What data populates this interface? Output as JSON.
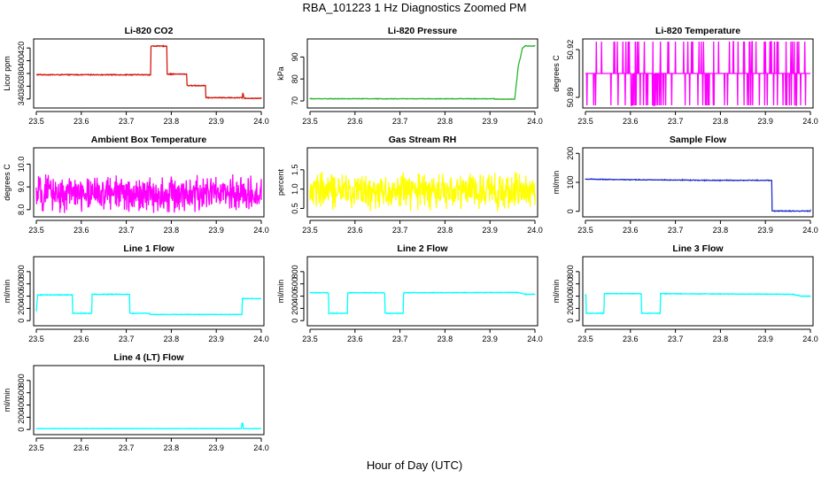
{
  "figure": {
    "title": "RBA_101223  1 Hz Diagnostics Zoomed PM",
    "xlabel": "Hour of Day (UTC)"
  },
  "chart_data": [
    {
      "type": "line",
      "title": "Li-820 CO2",
      "ylabel": "Licor ppm",
      "color": "#d11a0e",
      "xlim": [
        23.5,
        24.0
      ],
      "ylim": [
        330,
        430
      ],
      "xticks": [
        23.5,
        23.6,
        23.7,
        23.8,
        23.9,
        24.0
      ],
      "xtick_labels": [
        "23.5",
        "23.6",
        "23.7",
        "23.8",
        "23.9",
        "24.0"
      ],
      "yticks": [
        340,
        360,
        380,
        400,
        420
      ],
      "ytick_labels": [
        "340",
        "360",
        "380",
        "400",
        "420"
      ],
      "noise": 0.8,
      "series": [
        {
          "x": [
            23.5,
            23.754,
            23.755,
            23.79,
            23.791,
            23.834,
            23.835,
            23.876,
            23.877,
            23.958,
            23.959,
            23.962,
            23.963,
            24.0
          ],
          "y": [
            378,
            378,
            423,
            423,
            379,
            379,
            361,
            361,
            342,
            342,
            350,
            342,
            341,
            341
          ]
        }
      ]
    },
    {
      "type": "line",
      "title": "Li-820 Pressure",
      "ylabel": "kPa",
      "color": "#2bb52b",
      "xlim": [
        23.5,
        24.0
      ],
      "ylim": [
        68,
        97
      ],
      "xticks": [
        23.5,
        23.6,
        23.7,
        23.8,
        23.9,
        24.0
      ],
      "xtick_labels": [
        "23.5",
        "23.6",
        "23.7",
        "23.8",
        "23.9",
        "24.0"
      ],
      "yticks": [
        70,
        80,
        90
      ],
      "ytick_labels": [
        "70",
        "80",
        "90"
      ],
      "noise": 0.15,
      "series": [
        {
          "x": [
            23.5,
            23.91,
            23.911,
            23.955,
            23.963,
            23.968,
            23.972,
            23.978,
            24.0
          ],
          "y": [
            71,
            71,
            70.8,
            70.8,
            86,
            90,
            94,
            95,
            95
          ]
        }
      ]
    },
    {
      "type": "line",
      "title": "Li-820 Temperature",
      "ylabel": "degrees C",
      "color": "#ff00ff",
      "xlim": [
        23.5,
        24.0
      ],
      "ylim": [
        50.885,
        50.925
      ],
      "xticks": [
        23.5,
        23.6,
        23.7,
        23.8,
        23.9,
        24.0
      ],
      "xtick_labels": [
        "23.5",
        "23.6",
        "23.7",
        "23.8",
        "23.9",
        "24.0"
      ],
      "yticks": [
        50.89,
        50.92
      ],
      "ytick_labels": [
        "50.89",
        "50.92"
      ],
      "noise": 0,
      "baseline": 50.905,
      "spike_low": 50.885,
      "spike_high": 50.925
    },
    {
      "type": "line",
      "title": "Ambient Box Temperature",
      "ylabel": "degrees C",
      "color": "#ff00ff",
      "xlim": [
        23.5,
        24.0
      ],
      "ylim": [
        7.8,
        10.6
      ],
      "xticks": [
        23.5,
        23.6,
        23.7,
        23.8,
        23.9,
        24.0
      ],
      "xtick_labels": [
        "23.5",
        "23.6",
        "23.7",
        "23.8",
        "23.9",
        "24.0"
      ],
      "yticks": [
        8.0,
        9.0,
        10.0
      ],
      "ytick_labels": [
        "8.0",
        "9.0",
        "10.0"
      ],
      "noise": 0.9,
      "series": [
        {
          "x": [
            23.5,
            24.0
          ],
          "y": [
            8.7,
            8.7
          ]
        }
      ]
    },
    {
      "type": "line",
      "title": "Gas Stream RH",
      "ylabel": "percent",
      "color": "#ffff00",
      "xlim": [
        23.5,
        24.0
      ],
      "ylim": [
        0.35,
        2.0
      ],
      "xticks": [
        23.5,
        23.6,
        23.7,
        23.8,
        23.9,
        24.0
      ],
      "xtick_labels": [
        "23.5",
        "23.6",
        "23.7",
        "23.8",
        "23.9",
        "24.0"
      ],
      "yticks": [
        0.5,
        1.0,
        1.5
      ],
      "ytick_labels": [
        "0.5",
        "1.0",
        "1.5"
      ],
      "noise": 0.55,
      "series": [
        {
          "x": [
            23.5,
            24.0
          ],
          "y": [
            0.95,
            0.95
          ]
        }
      ]
    },
    {
      "type": "line",
      "title": "Sample Flow",
      "ylabel": "ml/min",
      "color": "#1f2fc8",
      "xlim": [
        23.5,
        24.0
      ],
      "ylim": [
        -10,
        210
      ],
      "xticks": [
        23.5,
        23.6,
        23.7,
        23.8,
        23.9,
        24.0
      ],
      "xtick_labels": [
        "23.5",
        "23.6",
        "23.7",
        "23.8",
        "23.9",
        "24.0"
      ],
      "yticks": [
        0,
        100,
        200
      ],
      "ytick_labels": [
        "0",
        "100",
        "200"
      ],
      "noise": 1.5,
      "series": [
        {
          "x": [
            23.5,
            23.6,
            23.7,
            23.8,
            23.914,
            23.915,
            23.92,
            24.0
          ],
          "y": [
            111,
            109,
            108,
            107,
            107,
            2,
            1,
            1
          ]
        }
      ]
    },
    {
      "type": "line",
      "title": "Line 1 Flow",
      "ylabel": "ml/min",
      "color": "#00ffff",
      "xlim": [
        23.5,
        24.0
      ],
      "ylim": [
        -40,
        1000
      ],
      "xticks": [
        23.5,
        23.6,
        23.7,
        23.8,
        23.9,
        24.0
      ],
      "xtick_labels": [
        "23.5",
        "23.6",
        "23.7",
        "23.8",
        "23.9",
        "24.0"
      ],
      "yticks": [
        0,
        200,
        400,
        600,
        800
      ],
      "ytick_labels": [
        "0",
        "200",
        "400",
        "600",
        "800"
      ],
      "noise": 6,
      "series": [
        {
          "x": [
            23.5,
            23.503,
            23.58,
            23.581,
            23.623,
            23.624,
            23.707,
            23.708,
            23.752,
            23.753,
            23.957,
            23.958,
            24.0
          ],
          "y": [
            150,
            420,
            420,
            120,
            120,
            430,
            430,
            120,
            120,
            100,
            100,
            360,
            360
          ]
        }
      ]
    },
    {
      "type": "line",
      "title": "Line 2 Flow",
      "ylabel": "ml/min",
      "color": "#00ffff",
      "xlim": [
        23.5,
        24.0
      ],
      "ylim": [
        -40,
        1000
      ],
      "xticks": [
        23.5,
        23.6,
        23.7,
        23.8,
        23.9,
        24.0
      ],
      "xtick_labels": [
        "23.5",
        "23.6",
        "23.7",
        "23.8",
        "23.9",
        "24.0"
      ],
      "yticks": [
        0,
        200,
        400,
        600,
        800
      ],
      "ytick_labels": [
        "0",
        "200",
        "400",
        "600",
        "800"
      ],
      "noise": 6,
      "series": [
        {
          "x": [
            23.5,
            23.541,
            23.542,
            23.583,
            23.584,
            23.666,
            23.667,
            23.707,
            23.708,
            23.96,
            23.98,
            24.0
          ],
          "y": [
            455,
            455,
            120,
            120,
            455,
            455,
            120,
            120,
            455,
            460,
            430,
            430
          ]
        }
      ]
    },
    {
      "type": "line",
      "title": "Line 3 Flow",
      "ylabel": "ml/min",
      "color": "#00ffff",
      "xlim": [
        23.5,
        24.0
      ],
      "ylim": [
        -40,
        1000
      ],
      "xticks": [
        23.5,
        23.6,
        23.7,
        23.8,
        23.9,
        24.0
      ],
      "xtick_labels": [
        "23.5",
        "23.6",
        "23.7",
        "23.8",
        "23.9",
        "24.0"
      ],
      "yticks": [
        0,
        200,
        400,
        600,
        800
      ],
      "ytick_labels": [
        "0",
        "200",
        "400",
        "600",
        "800"
      ],
      "noise": 6,
      "series": [
        {
          "x": [
            23.5,
            23.501,
            23.502,
            23.541,
            23.542,
            23.624,
            23.625,
            23.666,
            23.667,
            23.96,
            23.98,
            24.0
          ],
          "y": [
            420,
            420,
            120,
            120,
            440,
            440,
            120,
            120,
            440,
            430,
            400,
            400
          ]
        }
      ]
    },
    {
      "type": "line",
      "title": "Line 4 (LT) Flow",
      "ylabel": "ml/min",
      "color": "#00ffff",
      "xlim": [
        23.5,
        24.0
      ],
      "ylim": [
        -40,
        1000
      ],
      "xticks": [
        23.5,
        23.6,
        23.7,
        23.8,
        23.9,
        24.0
      ],
      "xtick_labels": [
        "23.5",
        "23.6",
        "23.7",
        "23.8",
        "23.9",
        "24.0"
      ],
      "yticks": [
        0,
        200,
        400,
        600,
        800
      ],
      "ytick_labels": [
        "0",
        "200",
        "400",
        "600",
        "800"
      ],
      "noise": 3,
      "series": [
        {
          "x": [
            23.5,
            23.956,
            23.957,
            23.959,
            23.96,
            24.0
          ],
          "y": [
            15,
            15,
            100,
            100,
            15,
            15
          ]
        }
      ]
    }
  ]
}
